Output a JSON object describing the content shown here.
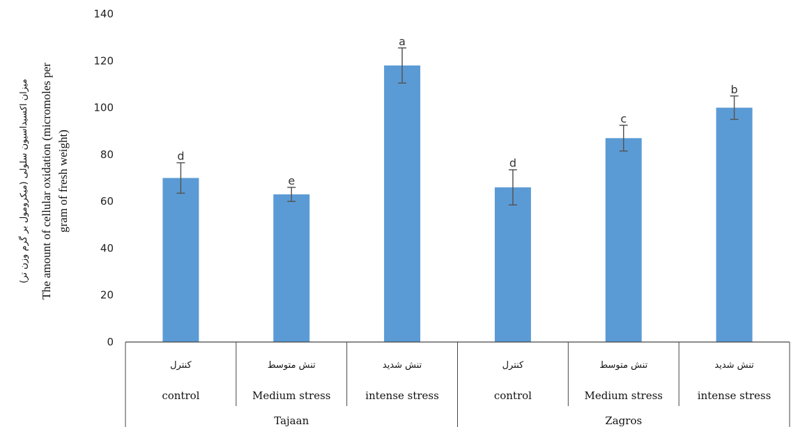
{
  "chart_data": {
    "type": "bar",
    "title": "",
    "groups": [
      {
        "name": "Tajaan",
        "categories": [
          0,
          1,
          2
        ]
      },
      {
        "name": "Zagros",
        "categories": [
          3,
          4,
          5
        ]
      }
    ],
    "categories_en": [
      "control",
      "Medium stress",
      "intense stress",
      "control",
      "Medium stress",
      "intense stress"
    ],
    "categories_fa": [
      "کنترل",
      "تنش متوسط",
      "تنش شدید",
      "کنترل",
      "تنش متوسط",
      "تنش شدید"
    ],
    "values": [
      70,
      63,
      118,
      66,
      87,
      100
    ],
    "errors": [
      6.5,
      3,
      7.5,
      7.5,
      5.5,
      5
    ],
    "significance": [
      "d",
      "e",
      "a",
      "d",
      "c",
      "b"
    ],
    "ylabel_fa": "میزان اکسیداسیون سلولی (میکرومول بر گرم وزن تر)",
    "ylabel_en_line1": "The amount of cellular oxidation (micromoles per",
    "ylabel_en_line2": "gram of fresh weight)",
    "ylim": [
      0,
      140
    ],
    "yticks": [
      0,
      20,
      40,
      60,
      80,
      100,
      120,
      140
    ],
    "grid": false,
    "legend": "none",
    "bar_color": "#5b9bd5",
    "error_color": "#555555"
  }
}
